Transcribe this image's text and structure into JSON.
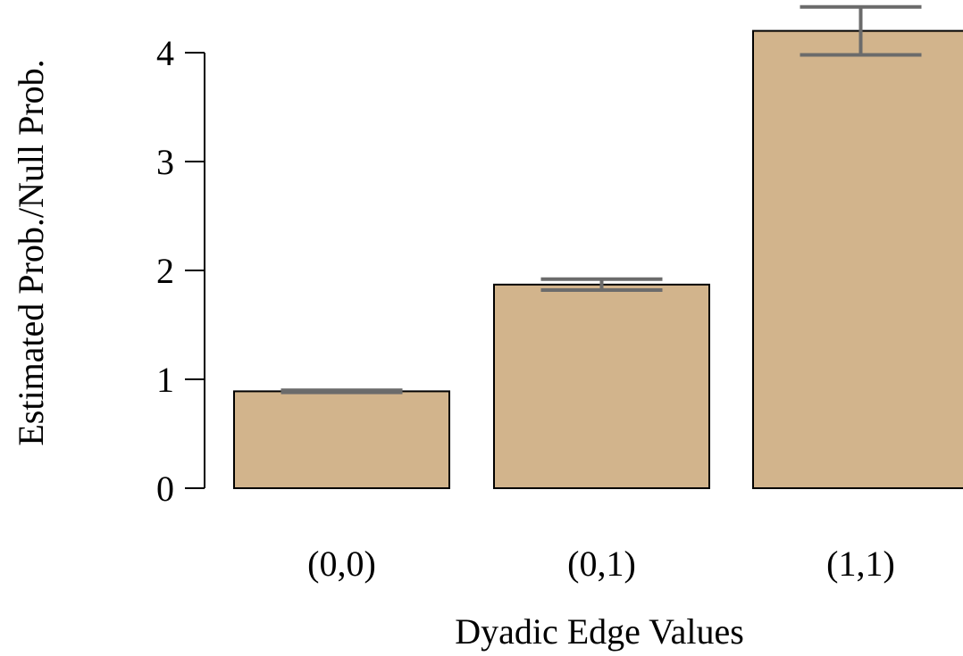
{
  "chart_data": {
    "type": "bar",
    "categories": [
      "(0,0)",
      "(0,1)",
      "(1,1)"
    ],
    "values": [
      0.89,
      1.87,
      4.2
    ],
    "error_low": [
      0.88,
      1.82,
      3.98
    ],
    "error_high": [
      0.9,
      1.92,
      4.42
    ],
    "xlabel": "Dyadic Edge Values",
    "ylabel": "Estimated Prob./Null Prob.",
    "yticks": [
      "0",
      "1",
      "2",
      "3",
      "4"
    ],
    "ylim": [
      0,
      4.45
    ],
    "grid": false,
    "colors": {
      "bar": "#d2b48c",
      "bar_border": "#000000",
      "error_bar": "#6b6b6b",
      "axis": "#000000"
    }
  }
}
